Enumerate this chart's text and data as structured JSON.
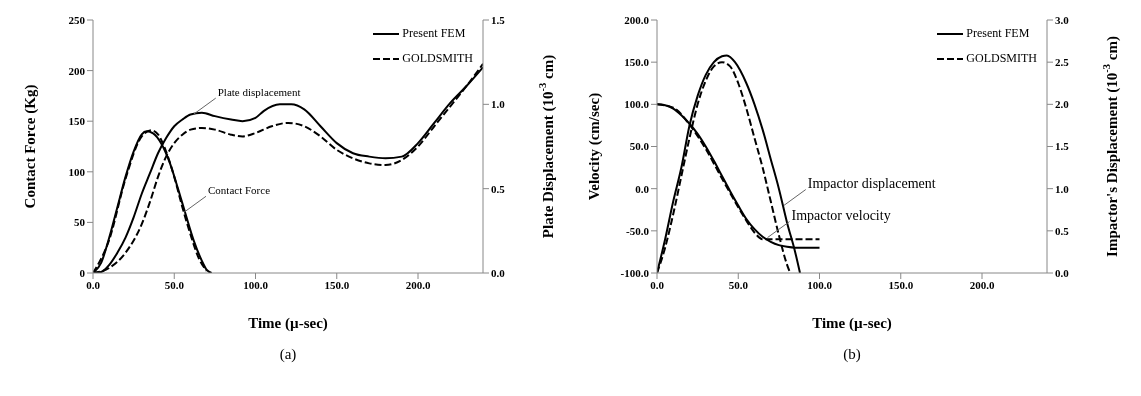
{
  "chart_data": [
    {
      "type": "line",
      "xlabel": "Time (µ-sec)",
      "ylabel": "Contact Force (Kg)",
      "y2label": "Plate Displacement  (10$^{-3}$ cm)",
      "xlim": [
        0,
        240
      ],
      "xticks": [
        {
          "value": 0,
          "label": "0.0"
        },
        {
          "value": 50,
          "label": "50.0"
        },
        {
          "value": 100,
          "label": "100.0"
        },
        {
          "value": 150,
          "label": "150.0"
        },
        {
          "value": 200,
          "label": "200.0"
        }
      ],
      "ylim": [
        0,
        250
      ],
      "yticks": [
        0,
        50,
        100,
        150,
        200,
        250
      ],
      "y2lim": [
        0,
        1.5
      ],
      "y2ticks": [
        {
          "value": 0,
          "label": "0.0"
        },
        {
          "value": 0.5,
          "label": "0.5"
        },
        {
          "value": 1,
          "label": "1.0"
        },
        {
          "value": 1.5,
          "label": "1.5"
        }
      ],
      "grid": false,
      "legend": "top right",
      "marker": "none",
      "series": [
        {
          "name": "Present FEM",
          "color": "#000000",
          "line_style": "solid",
          "x": [
            0,
            5,
            10,
            15,
            20,
            25,
            30,
            33,
            37,
            42,
            47,
            52,
            57,
            62,
            67,
            70,
            73
          ],
          "values": [
            0,
            10,
            35,
            65,
            95,
            120,
            137,
            140,
            138,
            128,
            110,
            85,
            58,
            32,
            12,
            3,
            0
          ]
        },
        {
          "name": "GOLDSMITH",
          "color": "#000000",
          "line_style": "dashed",
          "x": [
            0,
            10,
            20,
            30,
            36,
            40,
            45,
            50,
            55,
            60,
            65,
            70
          ],
          "values": [
            0,
            33,
            93,
            135,
            141,
            137,
            120,
            95,
            65,
            38,
            15,
            2
          ]
        },
        {
          "color": "#000000",
          "line_style": "solid",
          "axis": "y2",
          "x": [
            0,
            5,
            10,
            15,
            20,
            25,
            30,
            35,
            40,
            45,
            50,
            55,
            60,
            67,
            75,
            85,
            92,
            100,
            105,
            115,
            122,
            130,
            140,
            150,
            160,
            170,
            180,
            190,
            200,
            210,
            220,
            230,
            240
          ],
          "values": [
            0,
            0.006,
            0.048,
            0.12,
            0.21,
            0.33,
            0.47,
            0.59,
            0.71,
            0.8,
            0.87,
            0.91,
            0.94,
            0.95,
            0.93,
            0.91,
            0.9,
            0.92,
            0.96,
            1,
            1,
            0.97,
            0.87,
            0.77,
            0.71,
            0.69,
            0.68,
            0.69,
            0.77,
            0.89,
            1.01,
            1.11,
            1.22
          ]
        },
        {
          "color": "#000000",
          "line_style": "dashed",
          "axis": "y2",
          "x": [
            0,
            10,
            20,
            30,
            35,
            40,
            45,
            50,
            55,
            60,
            67,
            75,
            85,
            92,
            100,
            110,
            120,
            130,
            140,
            150,
            160,
            170,
            180,
            190,
            200,
            210,
            220,
            230,
            240
          ],
          "values": [
            0,
            0.03,
            0.12,
            0.29,
            0.42,
            0.57,
            0.69,
            0.77,
            0.82,
            0.85,
            0.86,
            0.85,
            0.82,
            0.81,
            0.83,
            0.87,
            0.89,
            0.87,
            0.81,
            0.73,
            0.68,
            0.65,
            0.64,
            0.67,
            0.75,
            0.87,
            0.99,
            1.11,
            1.24
          ]
        }
      ],
      "annotations": [
        {
          "text": "Plate displacement",
          "x": 62,
          "y": 157
        },
        {
          "text": "Contact Force",
          "x": 56,
          "y": 60
        },
        "(a)"
      ]
    },
    {
      "type": "line",
      "xlabel": "Time (µ-sec)",
      "ylabel": "Velocity (cm/sec)",
      "y2label": "Impactor's Displacement (10$^{-3}$ cm)",
      "xlim": [
        0,
        240
      ],
      "xticks": [
        {
          "value": 0,
          "label": "0.0"
        },
        {
          "value": 50,
          "label": "50.0"
        },
        {
          "value": 100,
          "label": "100.0"
        },
        {
          "value": 150,
          "label": "150.0"
        },
        {
          "value": 200,
          "label": "200.0"
        }
      ],
      "ylim": [
        -100,
        200
      ],
      "yticks": [
        {
          "value": -100,
          "label": "-100.0"
        },
        {
          "value": -50,
          "label": "-50.0"
        },
        {
          "value": 0,
          "label": "0.0"
        },
        {
          "value": 50,
          "label": "50.0"
        },
        {
          "value": 100,
          "label": "100.0"
        },
        {
          "value": 150,
          "label": "150.0"
        },
        {
          "value": 200,
          "label": "200.0"
        }
      ],
      "y2lim": [
        0,
        3
      ],
      "y2ticks": [
        {
          "value": 0,
          "label": "0.0"
        },
        {
          "value": 0.5,
          "label": "0.5"
        },
        {
          "value": 1,
          "label": "1.0"
        },
        {
          "value": 1.5,
          "label": "1.5"
        },
        {
          "value": 2,
          "label": "2.0"
        },
        {
          "value": 2.5,
          "label": "2.5"
        },
        {
          "value": 3,
          "label": "3.0"
        }
      ],
      "grid": false,
      "legend": "top right",
      "marker": "none",
      "series": [
        {
          "name": "Present FEM",
          "color": "#000000",
          "line_style": "solid",
          "x": [
            0,
            5,
            10,
            15,
            20,
            25,
            30,
            35,
            40,
            45,
            50,
            55,
            60,
            65,
            70,
            75,
            80,
            85,
            100
          ],
          "values": [
            100,
            99,
            95,
            87,
            77,
            65,
            50,
            33,
            15,
            -3,
            -20,
            -36,
            -48,
            -57,
            -63,
            -67,
            -69,
            -70,
            -70
          ]
        },
        {
          "name": "GOLDSMITH",
          "color": "#000000",
          "line_style": "dashed",
          "x": [
            0,
            10,
            20,
            30,
            40,
            50,
            55,
            60,
            63,
            65,
            100
          ],
          "values": [
            100,
            96,
            76,
            47,
            12,
            -22,
            -38,
            -52,
            -58,
            -60,
            -60
          ]
        },
        {
          "color": "#000000",
          "line_style": "solid",
          "axis": "y2",
          "x": [
            0,
            5,
            10,
            15,
            20,
            25,
            30,
            35,
            40,
            43,
            48,
            55,
            60,
            65,
            70,
            75,
            80,
            85,
            88
          ],
          "values": [
            0,
            0.4,
            0.85,
            1.25,
            1.75,
            2.1,
            2.35,
            2.5,
            2.57,
            2.58,
            2.5,
            2.25,
            2,
            1.7,
            1.35,
            1,
            0.6,
            0.25,
            0
          ]
        },
        {
          "color": "#000000",
          "line_style": "dashed",
          "axis": "y2",
          "x": [
            0,
            5,
            10,
            15,
            20,
            25,
            30,
            35,
            40,
            45,
            50,
            55,
            60,
            65,
            70,
            75,
            80,
            82
          ],
          "values": [
            0,
            0.3,
            0.7,
            1.15,
            1.6,
            2,
            2.28,
            2.45,
            2.5,
            2.45,
            2.25,
            1.95,
            1.6,
            1.25,
            0.85,
            0.45,
            0.1,
            0
          ]
        }
      ],
      "annotations": [
        {
          "text": "Impactor displacement",
          "x": 78,
          "y": -20
        },
        {
          "text": "Impactor velocity",
          "x": 68,
          "y": -58
        },
        "(b)"
      ]
    }
  ]
}
